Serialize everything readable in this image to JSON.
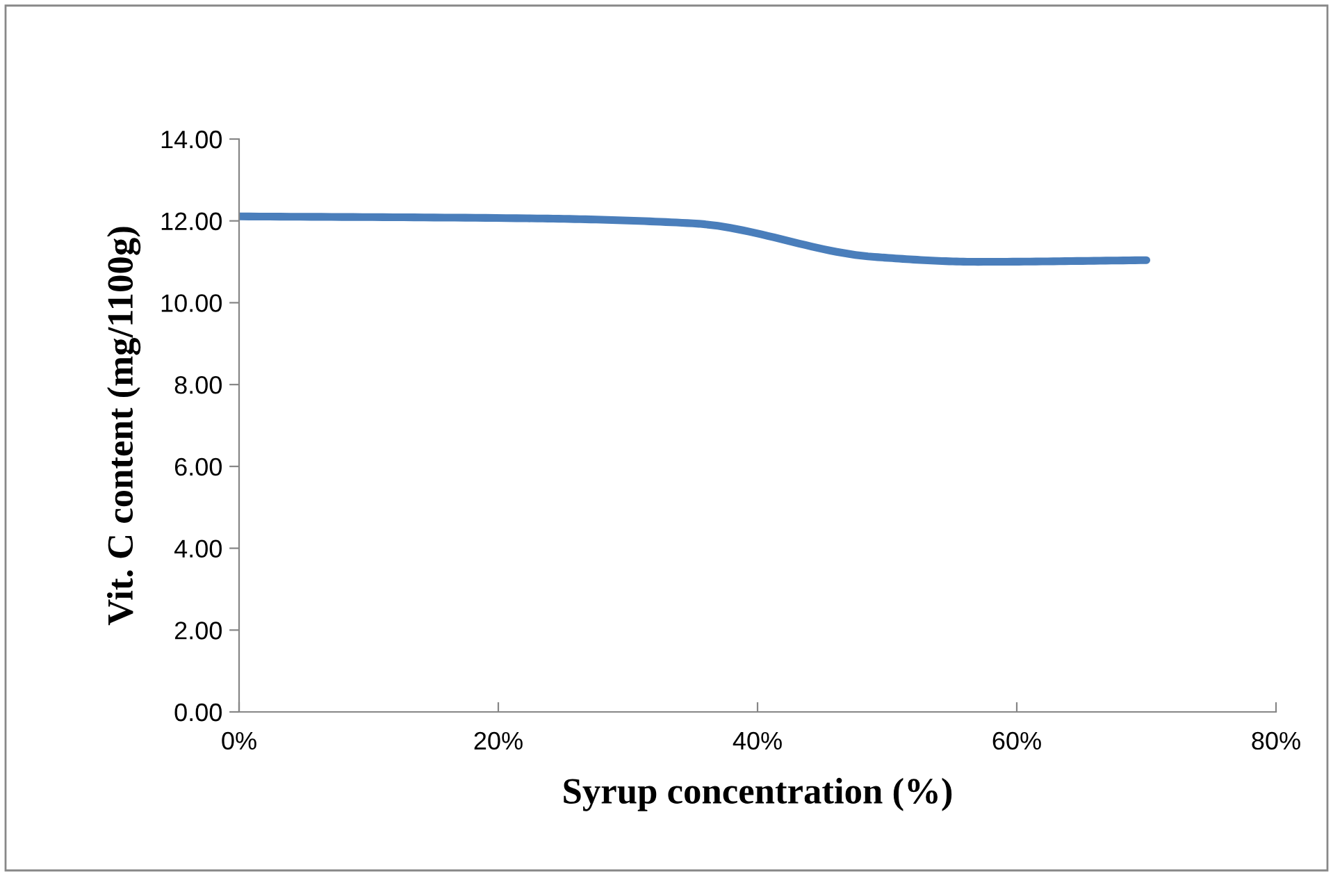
{
  "chart_data": {
    "type": "line",
    "xlabel": "Syrup concentration (%)",
    "ylabel": "Vit. C content (mg/1100g)",
    "x": [
      0,
      0.23,
      0.35,
      0.49,
      0.57,
      0.7
    ],
    "series": [
      {
        "color": "#4a7ebb",
        "values": [
          12.11,
          12.06,
          11.94,
          11.12,
          11.0,
          11.04
        ]
      }
    ],
    "xlim": [
      0,
      0.8
    ],
    "xticks": [
      {
        "value": 0,
        "label": "0%"
      },
      {
        "value": 0.2,
        "label": "20%"
      },
      {
        "value": 0.4,
        "label": "40%"
      },
      {
        "value": 0.6,
        "label": "60%"
      },
      {
        "value": 0.8,
        "label": "80%"
      }
    ],
    "ylim": [
      0,
      14
    ],
    "yticks": [
      {
        "value": 0,
        "label": "0.00"
      },
      {
        "value": 2,
        "label": "2.00"
      },
      {
        "value": 4,
        "label": "4.00"
      },
      {
        "value": 6,
        "label": "6.00"
      },
      {
        "value": 8,
        "label": "8.00"
      },
      {
        "value": 10,
        "label": "10.00"
      },
      {
        "value": 12,
        "label": "12.00"
      },
      {
        "value": 14,
        "label": "14.00"
      }
    ],
    "grid": false,
    "legend": false,
    "marker": "none",
    "line_style": "solid"
  }
}
